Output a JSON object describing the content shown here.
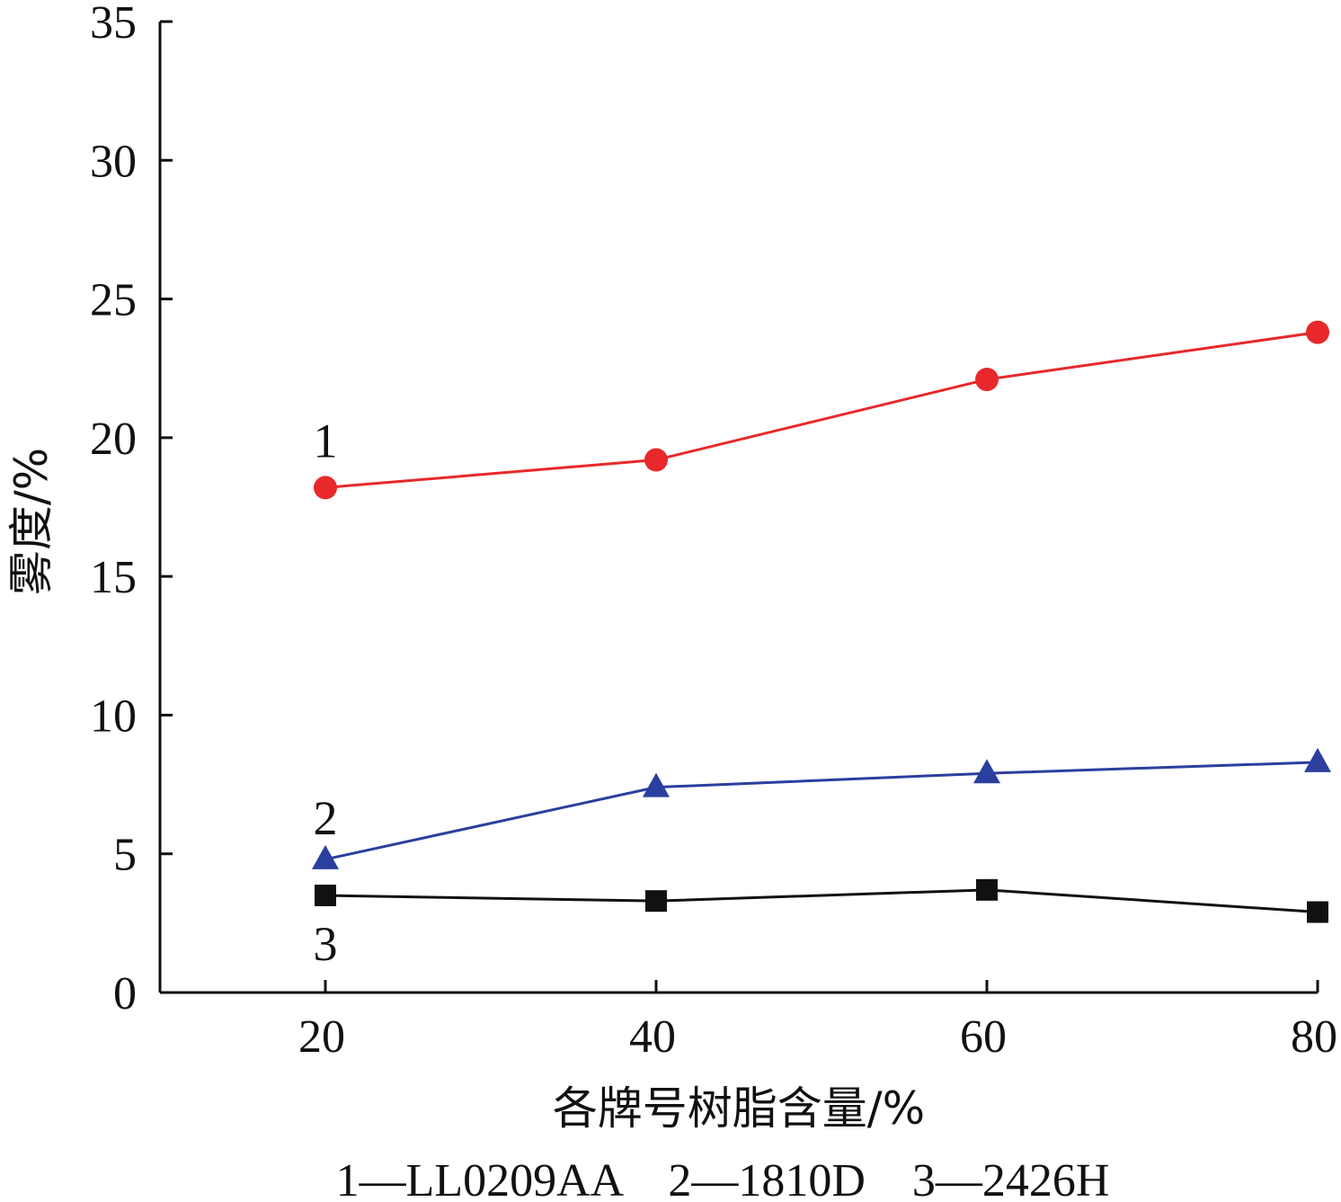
{
  "chart_data": {
    "type": "line",
    "xlabel": "各牌号树脂含量/%",
    "ylabel": "雾度/%",
    "x": [
      20,
      40,
      60,
      80
    ],
    "xlim": [
      10,
      80
    ],
    "ylim": [
      0,
      35
    ],
    "xticks": [
      20,
      40,
      60,
      80
    ],
    "yticks": [
      0,
      5,
      10,
      15,
      20,
      25,
      30,
      35
    ],
    "grid": false,
    "series": [
      {
        "name": "1",
        "values": [
          18.2,
          19.2,
          22.1,
          23.8
        ],
        "color": "#e8282a",
        "marker": "circle"
      },
      {
        "name": "2",
        "values": [
          4.8,
          7.4,
          7.9,
          8.3
        ],
        "color": "#2b3f9e",
        "marker": "triangle"
      },
      {
        "name": "3",
        "values": [
          3.5,
          3.3,
          3.7,
          2.9
        ],
        "color": "#111111",
        "marker": "square"
      }
    ],
    "legend": "1—LL0209AA　2—1810D　3—2426H"
  }
}
